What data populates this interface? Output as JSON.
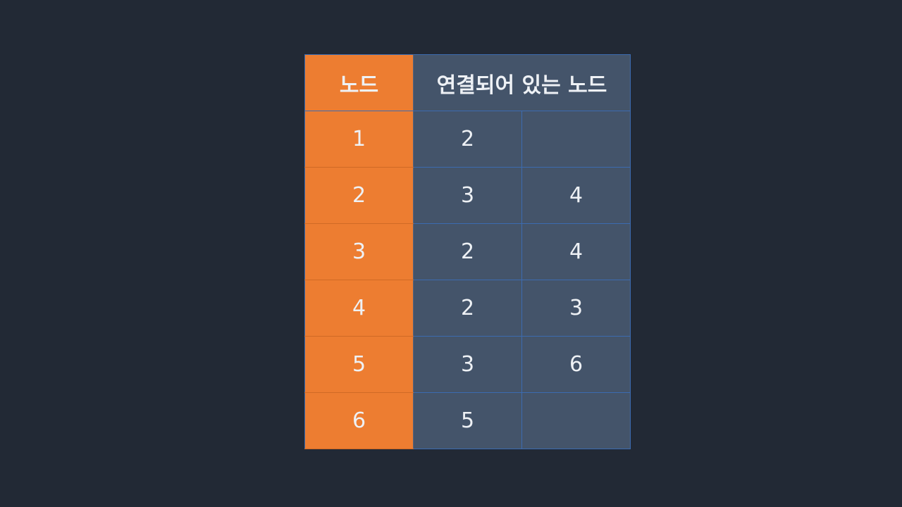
{
  "table": {
    "header": {
      "node_label": "노드",
      "connected_label": "연결되어 있는 노드"
    },
    "rows": [
      {
        "node": "1",
        "neighbors": [
          "2",
          ""
        ]
      },
      {
        "node": "2",
        "neighbors": [
          "3",
          "4"
        ]
      },
      {
        "node": "3",
        "neighbors": [
          "2",
          "4"
        ]
      },
      {
        "node": "4",
        "neighbors": [
          "2",
          "3"
        ]
      },
      {
        "node": "5",
        "neighbors": [
          "3",
          "6"
        ]
      },
      {
        "node": "6",
        "neighbors": [
          "5",
          ""
        ]
      }
    ]
  },
  "colors": {
    "background": "#222935",
    "node_column": "#ed7d31",
    "neighbor_cells": "#44546a",
    "grid_lines": "#3c6bb0",
    "text": "#eef1f5"
  }
}
